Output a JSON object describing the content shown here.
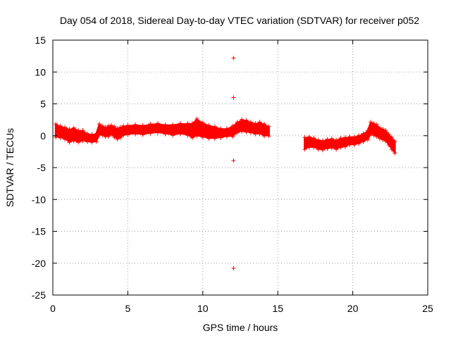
{
  "chart_data": {
    "type": "scatter",
    "title": "Day 054 of 2018, Sidereal Day-to-day VTEC variation (SDTVAR) for receiver p052",
    "xlabel": "GPS time / hours",
    "ylabel": "SDTVAR / TECUs",
    "xlim": [
      0,
      25
    ],
    "ylim": [
      -25,
      15
    ],
    "xticks": [
      0,
      5,
      10,
      15,
      20,
      25
    ],
    "yticks": [
      -25,
      -20,
      -15,
      -10,
      -5,
      0,
      5,
      10,
      15
    ],
    "grid": true,
    "series": [
      {
        "name": "SDTVAR",
        "color": "#ff0000",
        "marker": "+",
        "band_x": [
          0.2,
          0.5,
          0.8,
          1.1,
          1.4,
          1.7,
          2.0,
          2.3,
          2.6,
          2.9,
          3.1,
          3.3,
          3.5,
          3.7,
          3.9,
          4.1,
          4.3,
          4.5,
          4.7,
          5.0,
          5.5,
          6.0,
          6.5,
          7.0,
          7.5,
          8.0,
          8.5,
          9.0,
          9.3,
          9.6,
          10.0,
          10.4,
          10.8,
          11.2,
          11.6,
          12.0,
          12.3,
          12.6,
          12.9,
          13.2,
          13.5,
          13.8,
          14.1,
          14.4
        ],
        "band_y": [
          0.8,
          0.6,
          0.4,
          0.0,
          0.2,
          -0.1,
          0.0,
          -0.3,
          -0.4,
          -0.3,
          1.0,
          0.8,
          0.6,
          0.7,
          0.9,
          0.6,
          0.3,
          0.5,
          0.8,
          0.9,
          1.0,
          0.9,
          1.1,
          1.2,
          1.0,
          0.9,
          1.1,
          1.0,
          0.8,
          1.3,
          0.9,
          0.6,
          0.5,
          0.4,
          0.5,
          0.7,
          1.3,
          1.6,
          1.5,
          1.3,
          1.1,
          1.2,
          0.9,
          0.7
        ],
        "band_halfwidth": [
          0.9,
          0.8,
          0.8,
          0.9,
          0.9,
          0.8,
          0.7,
          0.5,
          0.5,
          0.5,
          0.7,
          0.6,
          0.6,
          0.7,
          0.6,
          0.7,
          0.7,
          0.7,
          0.6,
          0.6,
          0.6,
          0.6,
          0.6,
          0.6,
          0.6,
          0.7,
          0.7,
          0.8,
          1.0,
          1.2,
          1.0,
          0.9,
          0.8,
          0.6,
          0.5,
          0.7,
          0.7,
          0.8,
          0.8,
          0.7,
          0.7,
          0.8,
          0.8,
          0.6
        ],
        "band2_x": [
          16.8,
          17.1,
          17.4,
          17.7,
          18.0,
          18.3,
          18.6,
          18.9,
          19.2,
          19.5,
          19.8,
          20.1,
          20.4,
          20.7,
          21.0,
          21.2,
          21.4,
          21.6,
          21.8,
          22.0,
          22.2,
          22.4,
          22.6,
          22.8
        ],
        "band2_y": [
          -1.2,
          -1.0,
          -1.1,
          -1.4,
          -1.5,
          -1.3,
          -1.2,
          -1.4,
          -1.1,
          -1.0,
          -0.8,
          -0.8,
          -0.6,
          -0.3,
          0.1,
          1.2,
          1.0,
          0.8,
          0.4,
          0.2,
          0.0,
          -0.6,
          -1.2,
          -1.8
        ],
        "band2_halfwidth": [
          0.8,
          0.7,
          0.6,
          0.6,
          0.6,
          0.6,
          0.6,
          0.6,
          0.6,
          0.6,
          0.5,
          0.5,
          0.5,
          0.5,
          0.6,
          0.8,
          0.8,
          0.8,
          0.7,
          0.7,
          0.7,
          0.7,
          0.8,
          0.8
        ],
        "outliers": [
          {
            "x": 12.05,
            "y": 12.2
          },
          {
            "x": 12.05,
            "y": 6.0
          },
          {
            "x": 12.05,
            "y": -3.9
          },
          {
            "x": 12.05,
            "y": -20.8
          }
        ]
      }
    ]
  }
}
